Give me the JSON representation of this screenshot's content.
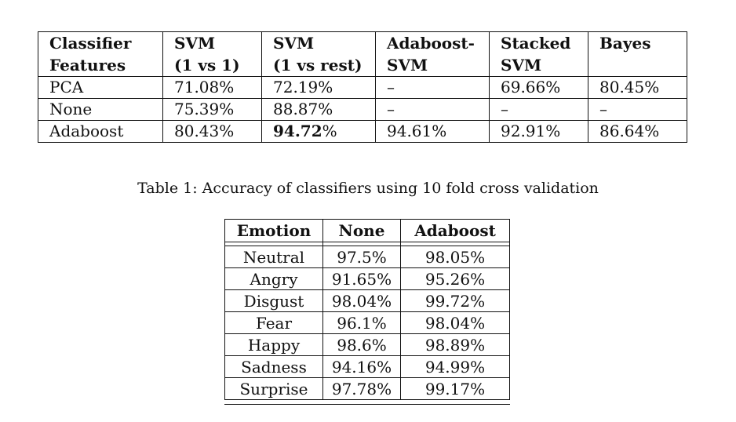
{
  "table1": {
    "header": [
      [
        "Classifier",
        "Features"
      ],
      [
        "SVM",
        "(1 vs 1)"
      ],
      [
        "SVM",
        "(1 vs rest)"
      ],
      [
        "Adaboost-",
        "SVM"
      ],
      [
        "Stacked",
        "SVM"
      ],
      [
        "Bayes",
        ""
      ]
    ],
    "rows": [
      [
        "PCA",
        "71.08%",
        "72.19%",
        "–",
        "69.66%",
        "80.45%"
      ],
      [
        "None",
        "75.39%",
        "88.87%",
        "–",
        "–",
        "–"
      ],
      [
        "Adaboost",
        "80.43%",
        "94.72%",
        "94.61%",
        "92.91%",
        "86.64%"
      ]
    ],
    "bold_cell": "94.72"
  },
  "caption": "Table 1: Accuracy of classifiers using 10 fold cross validation",
  "table2": {
    "header": [
      "Emotion",
      "None",
      "Adaboost"
    ],
    "rows": [
      [
        "Neutral",
        "97.5%",
        "98.05%"
      ],
      [
        "Angry",
        "91.65%",
        "95.26%"
      ],
      [
        "Disgust",
        "98.04%",
        "99.72%"
      ],
      [
        "Fear",
        "96.1%",
        "98.04%"
      ],
      [
        "Happy",
        "98.6%",
        "98.89%"
      ],
      [
        "Sadness",
        "94.16%",
        "94.99%"
      ],
      [
        "Surprise",
        "97.78%",
        "99.17%"
      ]
    ]
  }
}
